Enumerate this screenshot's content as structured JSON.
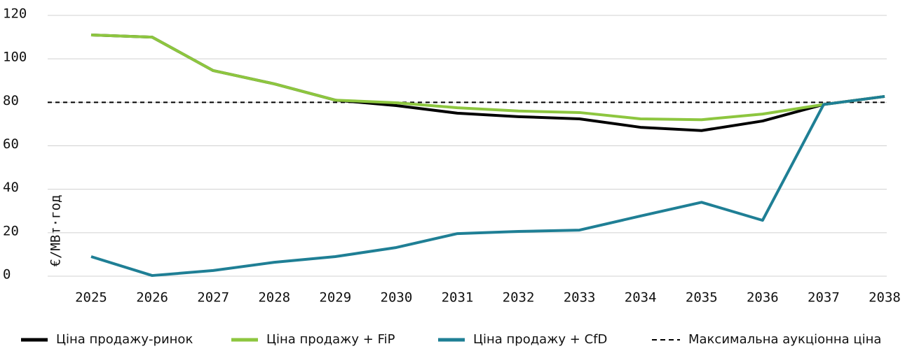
{
  "chart_data": {
    "type": "line",
    "y_label": "€/МВт·год",
    "categories": [
      "2025",
      "2026",
      "2027",
      "2028",
      "2029",
      "2030",
      "2031",
      "2032",
      "2033",
      "2034",
      "2035",
      "2036",
      "2037",
      "2038"
    ],
    "series": [
      {
        "name": "Ціна продажу-ринок",
        "color": "#000000",
        "values": [
          111,
          110,
          94.6,
          88.5,
          81,
          78.5,
          75,
          73.4,
          72.4,
          68.5,
          67,
          71.4,
          79,
          82.7
        ]
      },
      {
        "name": "Ціна продажу + FiP",
        "color": "#8dc63f",
        "values": [
          111,
          110,
          94.6,
          88.5,
          81,
          79.8,
          77.5,
          76,
          75.3,
          72.4,
          72,
          74.6,
          79,
          82.7
        ]
      },
      {
        "name": "Ціна продажу + CfD",
        "color": "#1f7f95",
        "values": [
          9,
          0.3,
          2.6,
          6.4,
          9,
          13.2,
          19.6,
          20.6,
          21.2,
          27.7,
          34,
          25.7,
          79,
          82.7
        ]
      }
    ],
    "reference_line": {
      "name": "Максимальна аукціонна ціна",
      "value": 80,
      "color": "#000000"
    },
    "ylim": [
      0,
      120
    ],
    "yticks": [
      0,
      20,
      40,
      60,
      80,
      100,
      120
    ],
    "grid": true,
    "legend": "bottom"
  }
}
